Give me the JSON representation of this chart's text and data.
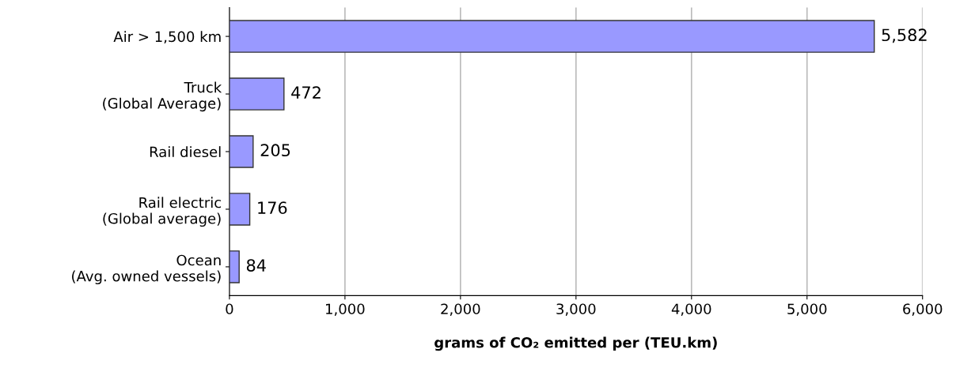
{
  "chart_data": {
    "type": "bar",
    "orientation": "horizontal",
    "xlabel": "grams of CO₂ emitted per (TEU.km)",
    "categories": [
      "Air > 1,500 km",
      "Truck\n(Global Average)",
      "Rail diesel",
      "Rail electric\n(Global average)",
      "Ocean\n(Avg. owned vessels)"
    ],
    "values": [
      5582,
      472,
      205,
      176,
      84
    ],
    "value_labels": [
      "5,582",
      "472",
      "205",
      "176",
      "84"
    ],
    "color": "#9999ff",
    "xlim": [
      0,
      6000
    ],
    "xticks": [
      0,
      {
        "value": 1000,
        "label": "1,000"
      },
      {
        "value": 2000,
        "label": "2,000"
      },
      {
        "value": 3000,
        "label": "3,000"
      },
      {
        "value": 4000,
        "label": "4,000"
      },
      {
        "value": 5000,
        "label": "5,000"
      },
      {
        "value": 6000,
        "label": "6,000"
      }
    ],
    "grid": "x"
  }
}
